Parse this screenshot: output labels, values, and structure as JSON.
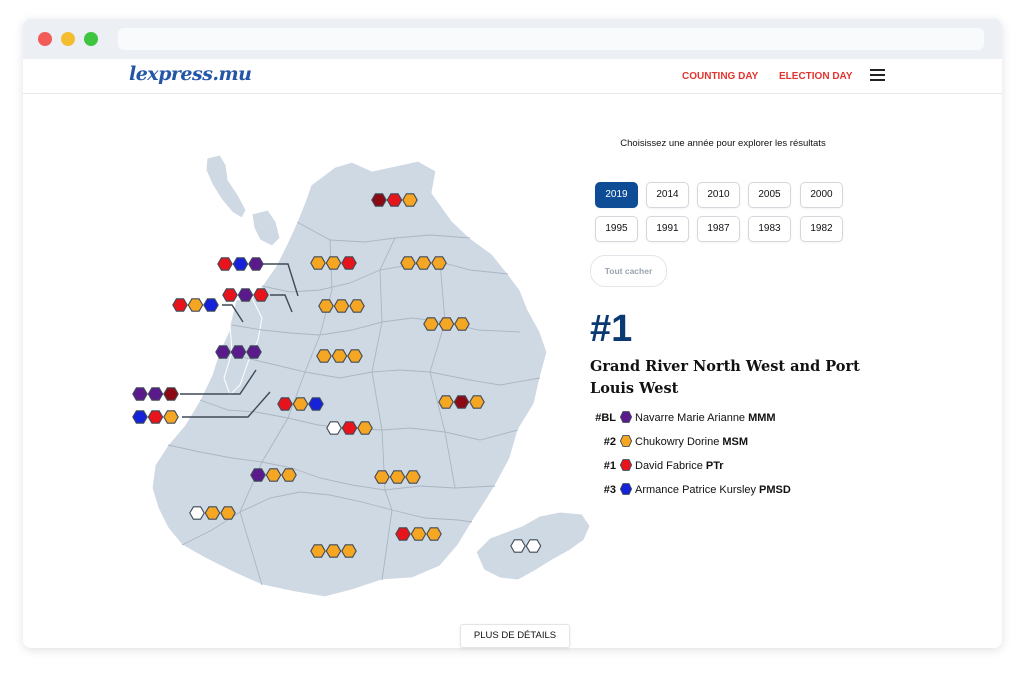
{
  "nav": {
    "logo": "lexpress.mu",
    "links": [
      "COUNTING DAY",
      "ELECTION DAY"
    ],
    "menu_icon": "hamburger-icon"
  },
  "selector": {
    "label": "Choisissez une année pour explorer les résultats",
    "years": [
      "2019",
      "2014",
      "2010",
      "2005",
      "2000",
      "1995",
      "1991",
      "1987",
      "1983",
      "1982"
    ],
    "selected": "2019",
    "hide_label": "Tout cacher"
  },
  "result": {
    "rank": "#1",
    "constituency": "Grand River North West and Port Louis West",
    "candidates": [
      {
        "position": "#BL",
        "name": "Navarre Marie Arianne",
        "party": "MMM",
        "color": "#5b1a8c"
      },
      {
        "position": "#2",
        "name": "Chukowry Dorine",
        "party": "MSM",
        "color": "#f5a623"
      },
      {
        "position": "#1",
        "name": "David Fabrice",
        "party": "PTr",
        "color": "#e8141c"
      },
      {
        "position": "#3",
        "name": "Armance Patrice Kursley",
        "party": "PMSD",
        "color": "#1522d9"
      }
    ]
  },
  "colors": {
    "MMM": "#5b1a8c",
    "MSM": "#f5a623",
    "PTr": "#e8141c",
    "PMSD": "#1522d9",
    "dark_red": "#8c0a14",
    "other": "#ffffff",
    "map_fill": "#cfd9e3",
    "accent": "#0e4d95",
    "nav_link": "#e0362f"
  },
  "constituency_seats": [
    [
      "dark_red",
      "PTr",
      "MSM"
    ],
    [
      "PTr",
      "PMSD",
      "MMM"
    ],
    [
      "MSM",
      "MSM",
      "PTr"
    ],
    [
      "MSM",
      "MSM",
      "MSM"
    ],
    [
      "PTr",
      "MSM",
      "PMSD"
    ],
    [
      "PTr",
      "MMM",
      "PTr"
    ],
    [
      "MSM",
      "MSM",
      "MSM"
    ],
    [
      "MSM",
      "MSM",
      "MSM"
    ],
    [
      "MMM",
      "MMM",
      "MMM"
    ],
    [
      "MSM",
      "MSM",
      "MSM"
    ],
    [
      "MMM",
      "MMM",
      "dark_red"
    ],
    [
      "PTr",
      "MSM",
      "PMSD"
    ],
    [
      "PMSD",
      "PTr",
      "MSM"
    ],
    [
      "MSM",
      "dark_red",
      "MSM"
    ],
    [
      "other",
      "PTr",
      "MSM"
    ],
    [
      "MMM",
      "MSM",
      "MSM"
    ],
    [
      "MSM",
      "MSM",
      "MSM"
    ],
    [
      "other",
      "MSM",
      "MSM"
    ],
    [
      "PTr",
      "MSM",
      "MSM"
    ],
    [
      "MSM",
      "MSM",
      "MSM"
    ],
    [
      "other",
      "other"
    ]
  ],
  "details_label": "PLUS DE DÉTAILS"
}
